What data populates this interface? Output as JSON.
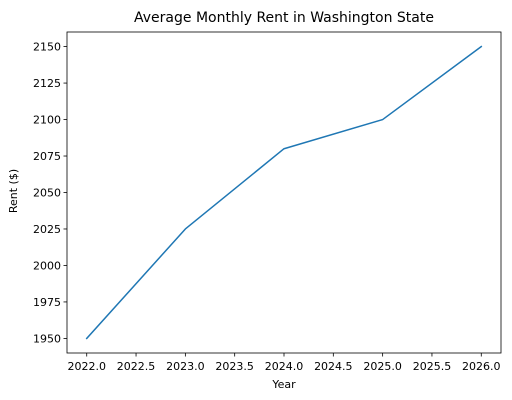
{
  "chart_data": {
    "type": "line",
    "title": "Average Monthly Rent in Washington State",
    "xlabel": "Year",
    "ylabel": "Rent ($)",
    "xlim": [
      2021.8,
      2026.2
    ],
    "ylim": [
      1940,
      2160
    ],
    "x_ticks": [
      2022.0,
      2022.5,
      2023.0,
      2023.5,
      2024.0,
      2024.5,
      2025.0,
      2025.5,
      2026.0
    ],
    "y_ticks": [
      1950,
      1975,
      2000,
      2025,
      2050,
      2075,
      2100,
      2125,
      2150
    ],
    "grid": false,
    "series": [
      {
        "color": "#1f77b4",
        "x": [
          2022,
          2023,
          2024,
          2025,
          2026
        ],
        "y": [
          1950,
          2025,
          2080,
          2100,
          2150
        ]
      }
    ]
  }
}
